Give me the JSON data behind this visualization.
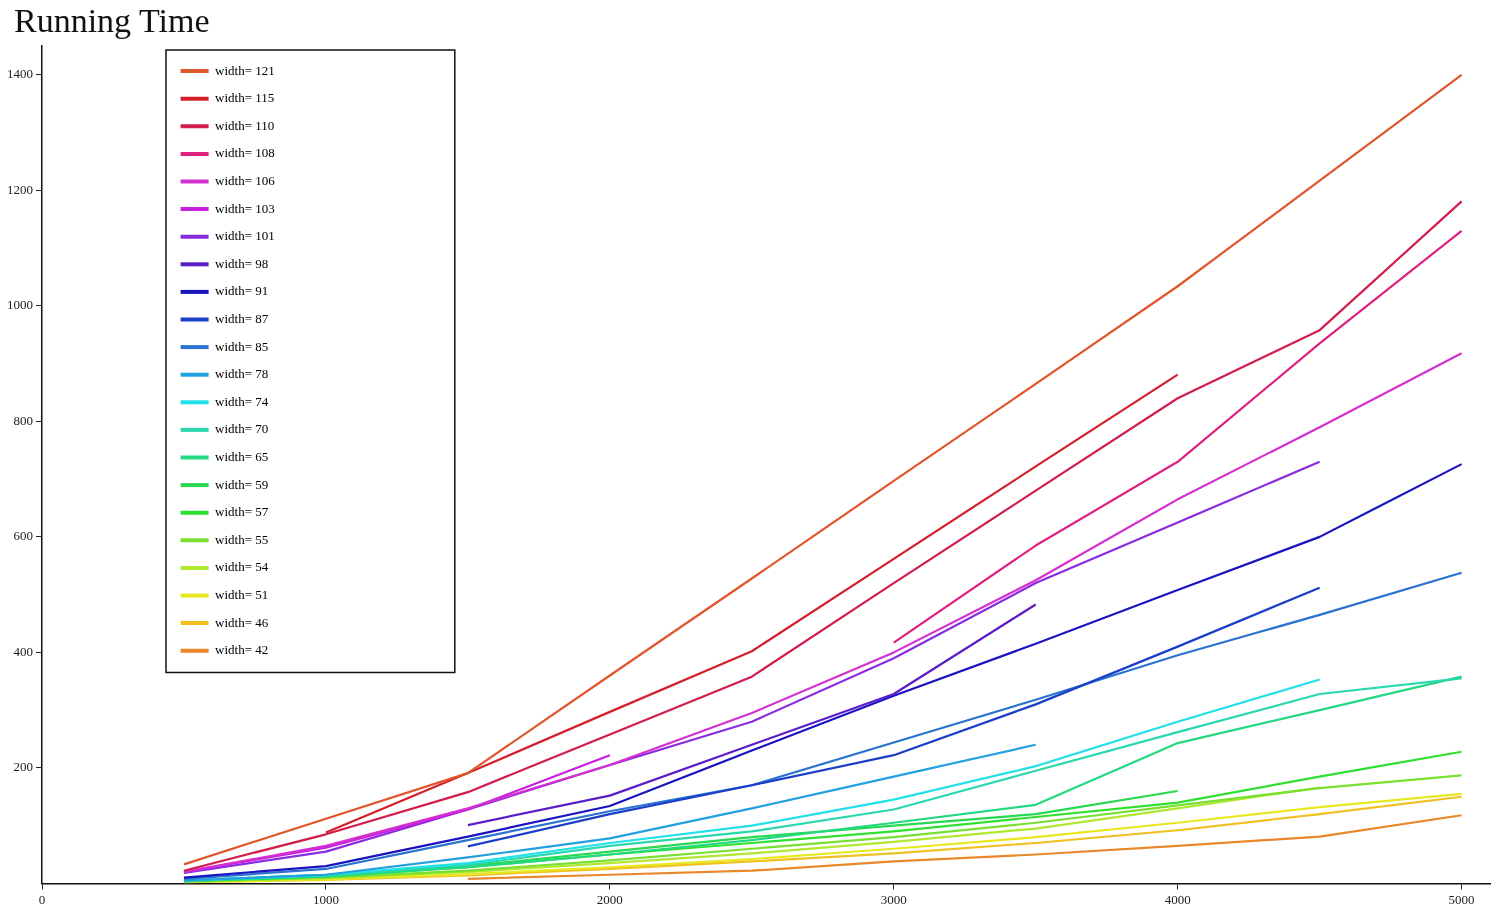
{
  "chart_data": {
    "type": "line",
    "title": "Running Time",
    "legend": "top left",
    "grid": false,
    "marker": "none",
    "line_style": "solid",
    "xlim": [
      0,
      5100
    ],
    "ylim": [
      0,
      1450
    ],
    "xticks": [
      0,
      1000,
      2000,
      3000,
      4000,
      5000
    ],
    "yticks": [
      200,
      400,
      600,
      800,
      1000,
      1200,
      1400
    ],
    "series": [
      {
        "name": "width= 121",
        "color": "#e0552a",
        "x": [
          500,
          1000,
          1500,
          2000,
          2500,
          3000,
          3500,
          4000,
          4500,
          5000
        ],
        "values": [
          33,
          112,
          191,
          360,
          528,
          697,
          865,
          1034,
          1217,
          1400
        ]
      },
      {
        "name": "width= 115",
        "color": "#d41f2a",
        "x": [
          1000,
          1500,
          2000,
          2500,
          3000,
          3500,
          4000
        ],
        "values": [
          88,
          191,
          297,
          402,
          562,
          722,
          881
        ]
      },
      {
        "name": "width= 110",
        "color": "#d21d4a",
        "x": [
          500,
          1000,
          1500,
          2000,
          2500,
          3000,
          3500,
          4000,
          4500,
          5000
        ],
        "values": [
          22,
          85,
          158,
          258,
          358,
          520,
          680,
          840,
          958,
          1181
        ]
      },
      {
        "name": "width= 108",
        "color": "#e0207f",
        "x": [
          3000,
          3500,
          4000,
          4500,
          5000
        ],
        "values": [
          417,
          585,
          730,
          935,
          1130
        ]
      },
      {
        "name": "width= 106",
        "color": "#d42fd0",
        "x": [
          500,
          1000,
          1500,
          2000,
          2500,
          3000,
          3500,
          4000,
          4500,
          5000
        ],
        "values": [
          20,
          65,
          130,
          205,
          295,
          400,
          525,
          665,
          790,
          918
        ]
      },
      {
        "name": "width= 103",
        "color": "#c81ee0",
        "x": [
          500,
          1000,
          1500,
          2000
        ],
        "values": [
          20,
          62,
          128,
          222
        ]
      },
      {
        "name": "width= 101",
        "color": "#8a2be2",
        "x": [
          500,
          1000,
          1500,
          2000,
          2500,
          3000,
          3500,
          4000,
          4500
        ],
        "values": [
          18,
          55,
          128,
          205,
          280,
          390,
          520,
          625,
          730
        ]
      },
      {
        "name": "width= 98",
        "color": "#5a1ec8",
        "x": [
          1500,
          2000,
          2500,
          3000,
          3500
        ],
        "values": [
          101,
          152,
          240,
          328,
          483
        ]
      },
      {
        "name": "width= 91",
        "color": "#1a14c0",
        "x": [
          500,
          1000,
          1500,
          2000,
          2500,
          3000,
          3500,
          4000,
          4500,
          5000
        ],
        "values": [
          10,
          30,
          81,
          134,
          230,
          325,
          415,
          508,
          600,
          726
        ]
      },
      {
        "name": "width= 87",
        "color": "#1a3ec8",
        "x": [
          1500,
          2000,
          2500,
          3000,
          3500,
          4000,
          4500
        ],
        "values": [
          64,
          120,
          170,
          222,
          310,
          410,
          512
        ]
      },
      {
        "name": "width= 85",
        "color": "#2a72d0",
        "x": [
          500,
          1000,
          1500,
          2000,
          2500,
          3000,
          3500,
          4000,
          4500,
          5000
        ],
        "values": [
          8,
          25,
          75,
          125,
          170,
          244,
          318,
          395,
          465,
          538
        ]
      },
      {
        "name": "width= 78",
        "color": "#22a0e0",
        "x": [
          500,
          1000,
          1500,
          2000,
          2500,
          3000,
          3500
        ],
        "values": [
          5,
          15,
          45,
          78,
          130,
          185,
          240
        ]
      },
      {
        "name": "width= 74",
        "color": "#22e0e8",
        "x": [
          500,
          1000,
          1500,
          2000,
          2500,
          3000,
          3500,
          4000,
          4500
        ],
        "values": [
          5,
          15,
          35,
          70,
          100,
          145,
          203,
          280,
          353
        ]
      },
      {
        "name": "width= 70",
        "color": "#2ad8b0",
        "x": [
          500,
          1000,
          1500,
          2000,
          2500,
          3000,
          3500,
          4000,
          4500,
          5000
        ],
        "values": [
          5,
          14,
          32,
          65,
          90,
          128,
          195,
          262,
          328,
          355
        ]
      },
      {
        "name": "width= 65",
        "color": "#22d880",
        "x": [
          500,
          1000,
          1500,
          2000,
          2500,
          3000,
          3500,
          4000,
          4500,
          5000
        ],
        "values": [
          4,
          12,
          28,
          50,
          75,
          105,
          136,
          243,
          300,
          358
        ]
      },
      {
        "name": "width= 59",
        "color": "#28d850",
        "x": [
          500,
          1000,
          1500,
          2000,
          2500,
          3000,
          3500,
          4000
        ],
        "values": [
          5,
          15,
          30,
          55,
          80,
          100,
          120,
          160
        ]
      },
      {
        "name": "width= 57",
        "color": "#30e030",
        "x": [
          500,
          1000,
          1500,
          2000,
          2500,
          3000,
          3500,
          4000,
          4500,
          5000
        ],
        "values": [
          4,
          12,
          28,
          50,
          70,
          90,
          115,
          140,
          185,
          228
        ]
      },
      {
        "name": "width= 55",
        "color": "#78e030",
        "x": [
          500,
          1000,
          1500,
          2000,
          2500,
          3000,
          3500,
          4000,
          4500,
          5000
        ],
        "values": [
          3,
          10,
          22,
          40,
          60,
          80,
          105,
          135,
          165,
          187
        ]
      },
      {
        "name": "width= 54",
        "color": "#b0e830",
        "x": [
          500,
          1000,
          1500,
          2000,
          2500,
          3000,
          3500,
          4000,
          4500
        ],
        "values": [
          3,
          9,
          20,
          35,
          52,
          72,
          95,
          130,
          166
        ]
      },
      {
        "name": "width= 51",
        "color": "#e8e820",
        "x": [
          500,
          1000,
          1500,
          2000,
          2500,
          3000,
          3500,
          4000,
          4500,
          5000
        ],
        "values": [
          2,
          7,
          16,
          28,
          42,
          60,
          80,
          105,
          132,
          155
        ]
      },
      {
        "name": "width= 46",
        "color": "#f0c020",
        "x": [
          500,
          1000,
          1500,
          2000,
          2500,
          3000,
          3500,
          4000,
          4500,
          5000
        ],
        "values": [
          2,
          6,
          14,
          25,
          38,
          52,
          70,
          92,
          120,
          150
        ]
      },
      {
        "name": "width= 42",
        "color": "#e8882a",
        "x": [
          1500,
          2000,
          2500,
          3000,
          3500,
          4000,
          4500,
          5000
        ],
        "values": [
          8,
          15,
          22,
          38,
          50,
          65,
          81,
          118
        ]
      }
    ]
  }
}
